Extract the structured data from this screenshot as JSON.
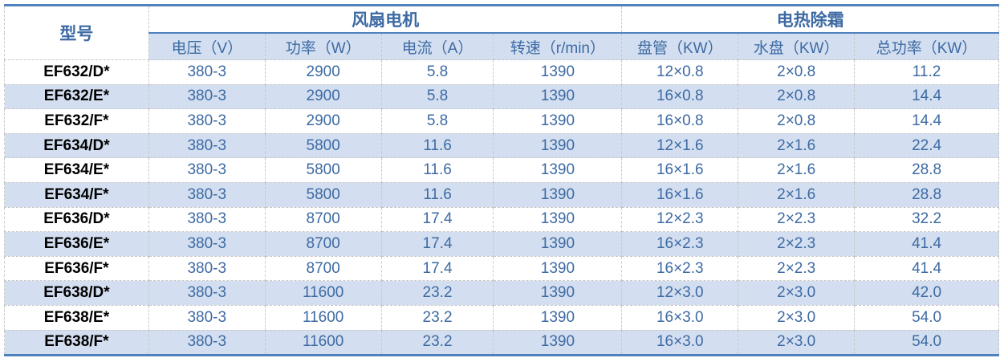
{
  "header": {
    "model": "型号",
    "group_fan": "风扇电机",
    "group_defrost": "电热除霜",
    "columns": [
      "电压（V）",
      "功率（W）",
      "电流（A）",
      "转速（r/min）",
      "盘管（KW）",
      "水盘（KW）",
      "总功率（KW）"
    ]
  },
  "colors": {
    "accent": "#4f81bd",
    "stripe": "#d3dff0",
    "text": "#3d6aa3"
  },
  "rows": [
    [
      "EF632/D*",
      "380-3",
      "2900",
      "5.8",
      "1390",
      "12×0.8",
      "2×0.8",
      "11.2"
    ],
    [
      "EF632/E*",
      "380-3",
      "2900",
      "5.8",
      "1390",
      "16×0.8",
      "2×0.8",
      "14.4"
    ],
    [
      "EF632/F*",
      "380-3",
      "2900",
      "5.8",
      "1390",
      "16×0.8",
      "2×0.8",
      "14.4"
    ],
    [
      "EF634/D*",
      "380-3",
      "5800",
      "11.6",
      "1390",
      "12×1.6",
      "2×1.6",
      "22.4"
    ],
    [
      "EF634/E*",
      "380-3",
      "5800",
      "11.6",
      "1390",
      "16×1.6",
      "2×1.6",
      "28.8"
    ],
    [
      "EF634/F*",
      "380-3",
      "5800",
      "11.6",
      "1390",
      "16×1.6",
      "2×1.6",
      "28.8"
    ],
    [
      "EF636/D*",
      "380-3",
      "8700",
      "17.4",
      "1390",
      "12×2.3",
      "2×2.3",
      "32.2"
    ],
    [
      "EF636/E*",
      "380-3",
      "8700",
      "17.4",
      "1390",
      "16×2.3",
      "2×2.3",
      "41.4"
    ],
    [
      "EF636/F*",
      "380-3",
      "8700",
      "17.4",
      "1390",
      "16×2.3",
      "2×2.3",
      "41.4"
    ],
    [
      "EF638/D*",
      "380-3",
      "11600",
      "23.2",
      "1390",
      "12×3.0",
      "2×3.0",
      "42.0"
    ],
    [
      "EF638/E*",
      "380-3",
      "11600",
      "23.2",
      "1390",
      "16×3.0",
      "2×3.0",
      "54.0"
    ],
    [
      "EF638/F*",
      "380-3",
      "11600",
      "23.2",
      "1390",
      "16×3.0",
      "2×3.0",
      "54.0"
    ]
  ]
}
